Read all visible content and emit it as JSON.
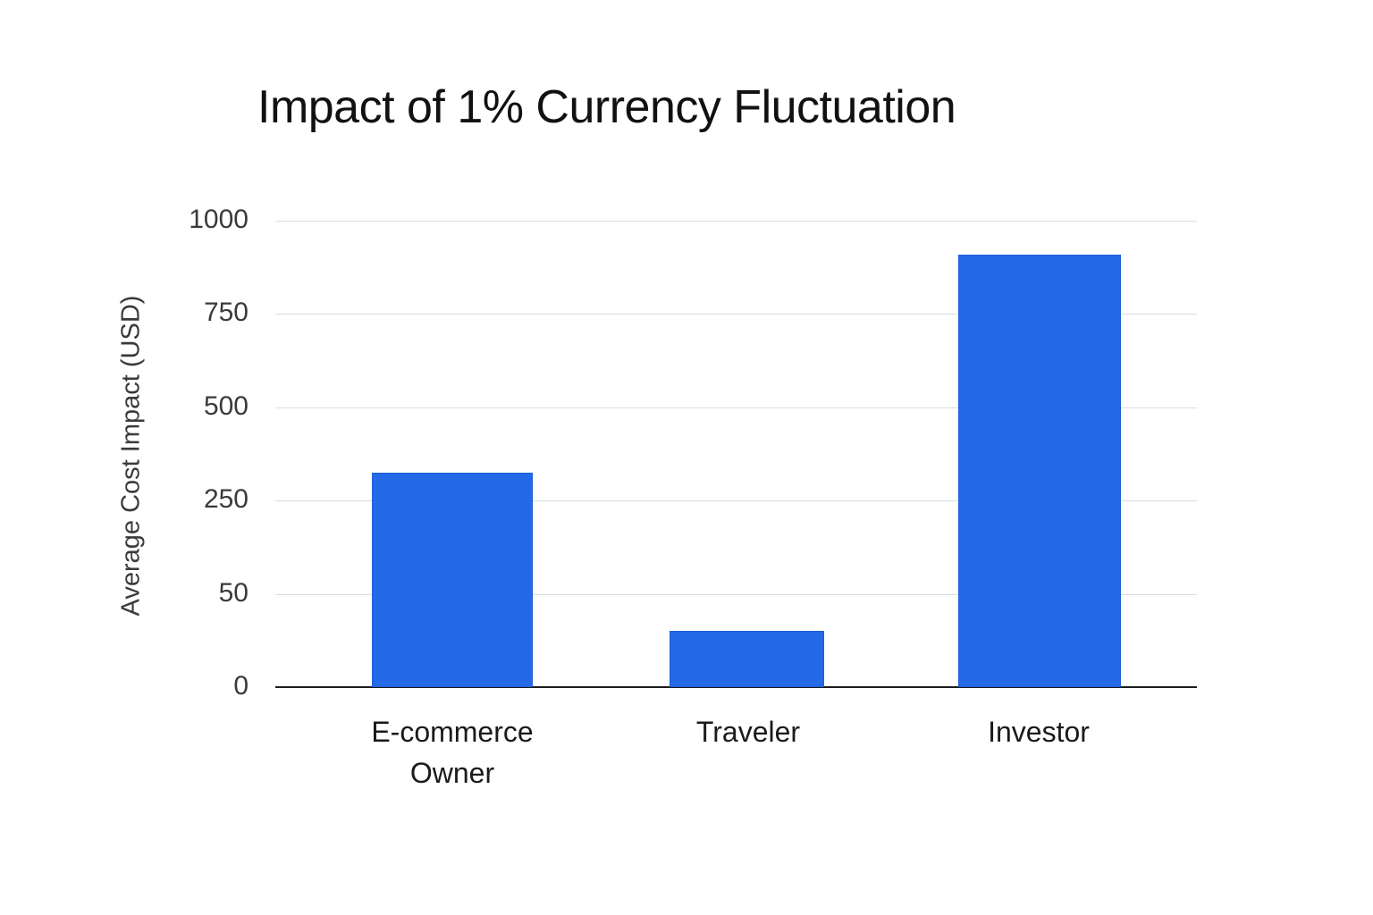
{
  "chart_data": {
    "type": "bar",
    "title": "Impact of 1% Currency Fluctuation",
    "xlabel": "",
    "ylabel": "Average Cost Impact (USD)",
    "categories": [
      "E-commerce Owner",
      "Traveler",
      "Investor"
    ],
    "values": [
      325,
      30,
      910
    ],
    "yticks": [
      0,
      50,
      250,
      500,
      750,
      1000
    ],
    "ylim": [
      0,
      1000
    ],
    "grid": true,
    "legend": null,
    "bar_color": "#2369e8"
  },
  "labels": {
    "title": "Impact of 1% Currency Fluctuation",
    "ylabel": "Average Cost Impact (USD)",
    "ticks": [
      "1000",
      "750",
      "500",
      "250",
      "50",
      "0"
    ],
    "categories": [
      "E-commerce\nOwner",
      "Traveler",
      "Investor"
    ]
  }
}
